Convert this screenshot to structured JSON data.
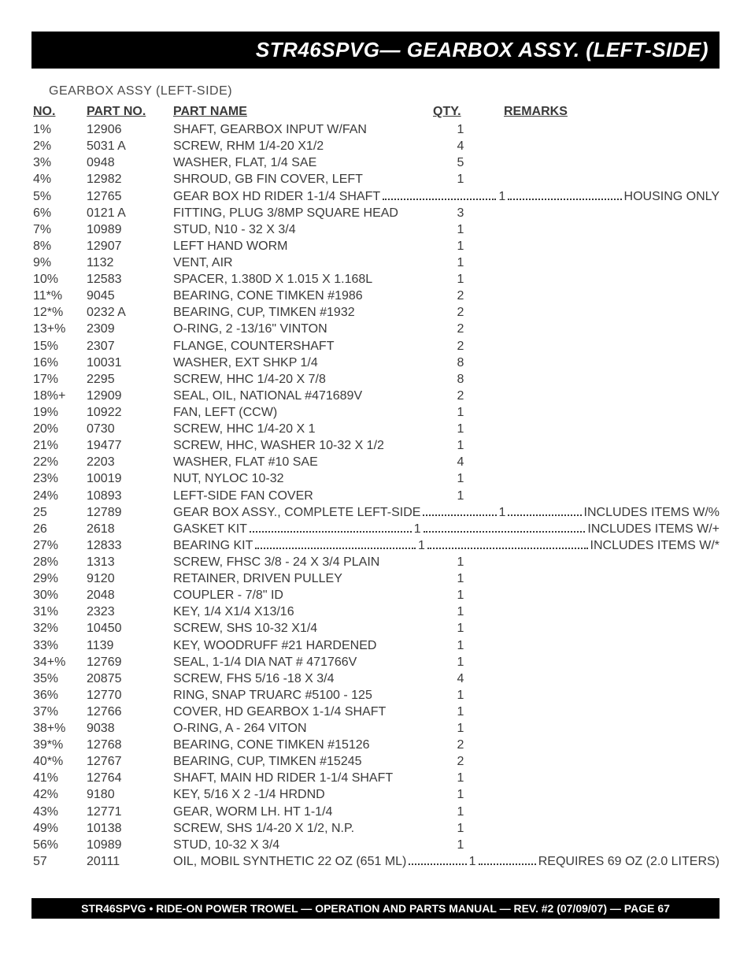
{
  "header": {
    "title": "STR46SPVG— GEARBOX ASSY.  (LEFT-SIDE)"
  },
  "subtitle": "GEARBOX  ASSY (LEFT-SIDE)",
  "columns": {
    "no": "NO.",
    "part_no": "PART NO.",
    "part_name": "PART NAME",
    "qty": "QTY.",
    "remarks": "REMARKS"
  },
  "rows": [
    {
      "no": "1%",
      "part": "12906",
      "name": "SHAFT, GEARBOX INPUT W/FAN",
      "qty": "1",
      "remarks": ""
    },
    {
      "no": "2%",
      "part": "5031 A",
      "name": "SCREW, RHM 1/4-20 X1/2",
      "qty": "4",
      "remarks": ""
    },
    {
      "no": "3%",
      "part": "0948",
      "name": "WASHER, FLAT, 1/4 SAE",
      "qty": "5",
      "remarks": ""
    },
    {
      "no": "4%",
      "part": "12982",
      "name": "SHROUD, GB FIN COVER, LEFT",
      "qty": "1",
      "remarks": ""
    },
    {
      "no": "5%",
      "part": "12765",
      "name": "GEAR BOX HD RIDER 1-1/4 SHAFT",
      "qty": "1",
      "remarks": "HOUSING ONLY",
      "dotted": true
    },
    {
      "no": "6%",
      "part": "0121 A",
      "name": "FITTING, PLUG 3/8MP SQUARE HEAD",
      "qty": "3",
      "remarks": ""
    },
    {
      "no": "7%",
      "part": "10989",
      "name": "STUD, N10 - 32 X 3/4",
      "qty": "1",
      "remarks": ""
    },
    {
      "no": "8%",
      "part": "12907",
      "name": "LEFT HAND WORM",
      "qty": "1",
      "remarks": ""
    },
    {
      "no": "9%",
      "part": "1132",
      "name": "VENT, AIR",
      "qty": "1",
      "remarks": ""
    },
    {
      "no": "10%",
      "part": "12583",
      "name": "SPACER, 1.380D X 1.015 X 1.168L",
      "qty": "1",
      "remarks": ""
    },
    {
      "no": "11*%",
      "part": "9045",
      "name": "BEARING, CONE TIMKEN #1986",
      "qty": "2",
      "remarks": ""
    },
    {
      "no": "12*%",
      "part": "0232 A",
      "name": "BEARING, CUP, TIMKEN #1932",
      "qty": "2",
      "remarks": ""
    },
    {
      "no": "13+%",
      "part": "2309",
      "name": "O-RING, 2 -13/16\" VINTON",
      "qty": "2",
      "remarks": ""
    },
    {
      "no": "15%",
      "part": "2307",
      "name": "FLANGE, COUNTERSHAFT",
      "qty": "2",
      "remarks": ""
    },
    {
      "no": "16%",
      "part": "10031",
      "name": "WASHER, EXT SHKP 1/4",
      "qty": "8",
      "remarks": ""
    },
    {
      "no": "17%",
      "part": "2295",
      "name": "SCREW, HHC 1/4-20 X 7/8",
      "qty": "8",
      "remarks": ""
    },
    {
      "no": "18%+",
      "part": "12909",
      "name": "SEAL, OIL, NATIONAL #471689V",
      "qty": "2",
      "remarks": ""
    },
    {
      "no": "19%",
      "part": "10922",
      "name": "FAN, LEFT (CCW)",
      "qty": "1",
      "remarks": ""
    },
    {
      "no": "20%",
      "part": "0730",
      "name": "SCREW, HHC 1/4-20 X 1",
      "qty": "1",
      "remarks": ""
    },
    {
      "no": "21%",
      "part": "19477",
      "name": "SCREW, HHC, WASHER 10-32 X 1/2",
      "qty": "1",
      "remarks": ""
    },
    {
      "no": "22%",
      "part": "2203",
      "name": "WASHER, FLAT #10 SAE",
      "qty": "4",
      "remarks": ""
    },
    {
      "no": "23%",
      "part": "10019",
      "name": "NUT, NYLOC 10-32",
      "qty": "1",
      "remarks": ""
    },
    {
      "no": "24%",
      "part": "10893",
      "name": "LEFT-SIDE FAN COVER",
      "qty": "1",
      "remarks": ""
    },
    {
      "no": "25",
      "part": "12789",
      "name": "GEAR BOX ASSY., COMPLETE LEFT-SIDE",
      "qty": "1",
      "remarks": "INCLUDES ITEMS W/%",
      "dotted": true
    },
    {
      "no": "26",
      "part": "2618",
      "name": "GASKET KIT",
      "qty": "1",
      "remarks": "INCLUDES ITEMS W/+",
      "dotted": true
    },
    {
      "no": "27%",
      "part": "12833",
      "name": "BEARING KIT",
      "qty": "1",
      "remarks": "INCLUDES  ITEMS W/*",
      "dotted": true
    },
    {
      "no": "28%",
      "part": "1313",
      "name": "SCREW, FHSC 3/8 - 24 X 3/4 PLAIN",
      "qty": "1",
      "remarks": ""
    },
    {
      "no": "29%",
      "part": "9120",
      "name": "RETAINER, DRIVEN PULLEY",
      "qty": "1",
      "remarks": ""
    },
    {
      "no": "30%",
      "part": "2048",
      "name": "COUPLER - 7/8\" ID",
      "qty": "1",
      "remarks": ""
    },
    {
      "no": "31%",
      "part": "2323",
      "name": "KEY, 1/4 X1/4 X13/16",
      "qty": "1",
      "remarks": ""
    },
    {
      "no": "32%",
      "part": "10450",
      "name": "SCREW, SHS 10-32 X1/4",
      "qty": "1",
      "remarks": ""
    },
    {
      "no": "33%",
      "part": "1139",
      "name": "KEY, WOODRUFF #21 HARDENED",
      "qty": "1",
      "remarks": ""
    },
    {
      "no": "34+%",
      "part": "12769",
      "name": "SEAL, 1-1/4 DIA NAT # 471766V",
      "qty": "1",
      "remarks": ""
    },
    {
      "no": "35%",
      "part": "20875",
      "name": "SCREW, FHS 5/16 -18 X 3/4",
      "qty": "4",
      "remarks": ""
    },
    {
      "no": "36%",
      "part": "12770",
      "name": "RING, SNAP TRUARC #5100 - 125",
      "qty": "1",
      "remarks": ""
    },
    {
      "no": "37%",
      "part": "12766",
      "name": "COVER, HD GEARBOX 1-1/4 SHAFT",
      "qty": "1",
      "remarks": ""
    },
    {
      "no": "38+%",
      "part": "9038",
      "name": "O-RING, A - 264 VITON",
      "qty": "1",
      "remarks": ""
    },
    {
      "no": "39*%",
      "part": "12768",
      "name": "BEARING, CONE TIMKEN #15126",
      "qty": "2",
      "remarks": ""
    },
    {
      "no": "40*%",
      "part": "12767",
      "name": "BEARING, CUP, TIMKEN #15245",
      "qty": "2",
      "remarks": ""
    },
    {
      "no": "41%",
      "part": "12764",
      "name": "SHAFT, MAIN HD RIDER 1-1/4 SHAFT",
      "qty": "1",
      "remarks": ""
    },
    {
      "no": "42%",
      "part": "9180",
      "name": "KEY, 5/16 X 2 -1/4 HRDND",
      "qty": "1",
      "remarks": ""
    },
    {
      "no": "43%",
      "part": "12771",
      "name": "GEAR, WORM LH. HT 1-1/4",
      "qty": "1",
      "remarks": ""
    },
    {
      "no": "49%",
      "part": "10138",
      "name": "SCREW, SHS 1/4-20 X 1/2, N.P.",
      "qty": "1",
      "remarks": ""
    },
    {
      "no": "56%",
      "part": "10989",
      "name": "STUD, 10-32 X 3/4",
      "qty": "1",
      "remarks": ""
    },
    {
      "no": "57",
      "part": "20111",
      "name": "OIL, MOBIL SYNTHETIC 22 OZ (651 ML)",
      "qty": "1",
      "remarks": "REQUIRES 69 OZ (2.0 LITERS)",
      "dotted": true
    }
  ],
  "footer": "STR46SPVG • RIDE-ON POWER TROWEL — OPERATION AND PARTS MANUAL — REV. #2 (07/09/07) — PAGE 67",
  "style": {
    "header_bg": "#000000",
    "header_fg": "#ffffff",
    "body_fg": "#3a3a3a",
    "font_family": "Arial, Helvetica, sans-serif"
  }
}
